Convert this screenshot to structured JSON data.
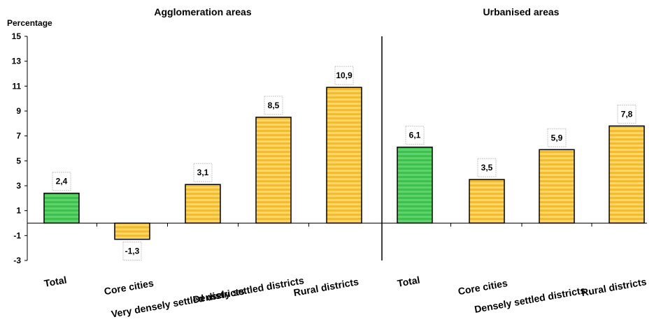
{
  "chart_data": {
    "type": "bar",
    "ylabel": "Percentage",
    "ylim": [
      -3,
      15
    ],
    "yticks": [
      -3,
      -1,
      1,
      3,
      5,
      7,
      9,
      11,
      13,
      15
    ],
    "grid": false,
    "colors": {
      "total": "#3fbf4f",
      "sub": "#f5c343"
    },
    "groups": [
      {
        "title": "Agglomeration areas",
        "categories": [
          "Total",
          "Core cities",
          "Very densely settled districts",
          "Densely settled districts",
          "Rural districts"
        ],
        "values": [
          2.4,
          -1.3,
          3.1,
          8.5,
          10.9
        ],
        "labels": [
          "2,4",
          "-1,3",
          "3,1",
          "8,5",
          "10,9"
        ]
      },
      {
        "title": "Urbanised areas",
        "categories": [
          "Total",
          "Core cities",
          "Densely settled districts",
          "Rural districts"
        ],
        "values": [
          6.1,
          3.5,
          5.9,
          7.8
        ],
        "labels": [
          "6,1",
          "3,5",
          "5,9",
          "7,8"
        ]
      }
    ]
  }
}
